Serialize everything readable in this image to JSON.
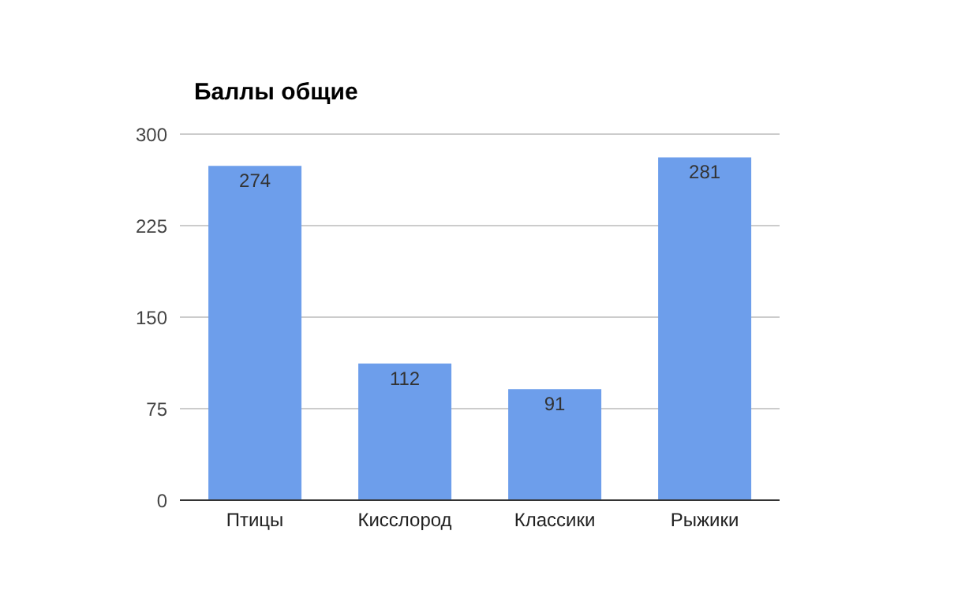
{
  "chart_data": {
    "type": "bar",
    "title": "Баллы общие",
    "categories": [
      "Птицы",
      "Кисслород",
      "Классики",
      "Рыжики"
    ],
    "values": [
      274,
      112,
      91,
      281
    ],
    "color": "#6d9eeb",
    "ylim": [
      0,
      300
    ],
    "yticks": [
      0,
      75,
      150,
      225,
      300
    ],
    "grid": "y",
    "data_labels": true
  }
}
